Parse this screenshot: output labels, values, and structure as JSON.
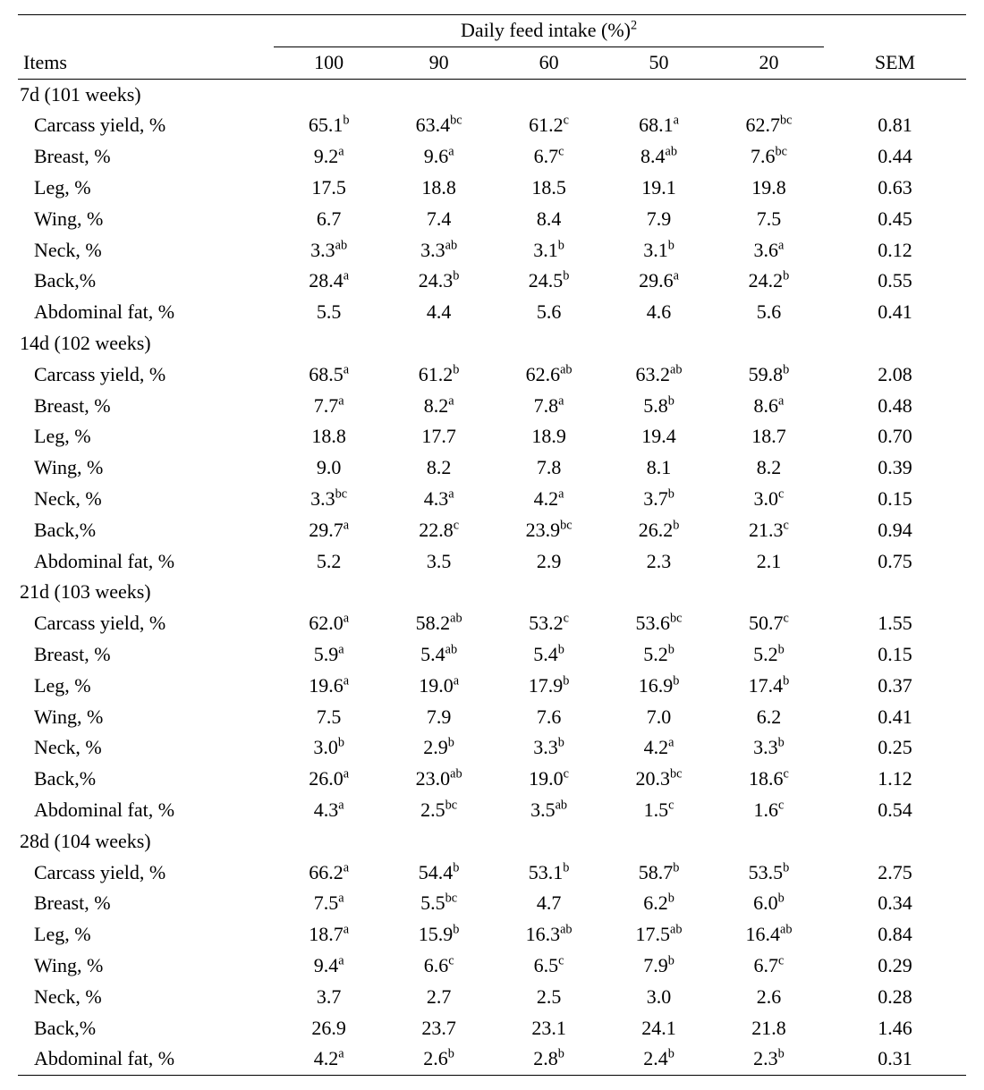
{
  "header": {
    "items": "Items",
    "group": "Daily feed intake (%)",
    "group_sup": "2",
    "cols": [
      "100",
      "90",
      "60",
      "50",
      "20"
    ],
    "sem": "SEM"
  },
  "sections": [
    {
      "title": "7d (101 weeks)",
      "rows": [
        {
          "label": "Carcass yield, %",
          "v": [
            {
              "n": "65.1",
              "s": "b"
            },
            {
              "n": "63.4",
              "s": "bc"
            },
            {
              "n": "61.2",
              "s": "c"
            },
            {
              "n": "68.1",
              "s": "a"
            },
            {
              "n": "62.7",
              "s": "bc"
            }
          ],
          "sem": "0.81"
        },
        {
          "label": "Breast, %",
          "v": [
            {
              "n": "9.2",
              "s": "a"
            },
            {
              "n": "9.6",
              "s": "a"
            },
            {
              "n": "6.7",
              "s": "c"
            },
            {
              "n": "8.4",
              "s": "ab"
            },
            {
              "n": "7.6",
              "s": "bc"
            }
          ],
          "sem": "0.44"
        },
        {
          "label": "Leg, %",
          "v": [
            {
              "n": "17.5"
            },
            {
              "n": "18.8"
            },
            {
              "n": "18.5"
            },
            {
              "n": "19.1"
            },
            {
              "n": "19.8"
            }
          ],
          "sem": "0.63"
        },
        {
          "label": "Wing, %",
          "v": [
            {
              "n": "6.7"
            },
            {
              "n": "7.4"
            },
            {
              "n": "8.4"
            },
            {
              "n": "7.9"
            },
            {
              "n": "7.5"
            }
          ],
          "sem": "0.45"
        },
        {
          "label": "Neck, %",
          "v": [
            {
              "n": "3.3",
              "s": "ab"
            },
            {
              "n": "3.3",
              "s": "ab"
            },
            {
              "n": "3.1",
              "s": "b"
            },
            {
              "n": "3.1",
              "s": "b"
            },
            {
              "n": "3.6",
              "s": "a"
            }
          ],
          "sem": "0.12"
        },
        {
          "label": "Back,%",
          "v": [
            {
              "n": "28.4",
              "s": "a"
            },
            {
              "n": "24.3",
              "s": "b"
            },
            {
              "n": "24.5",
              "s": "b"
            },
            {
              "n": "29.6",
              "s": "a"
            },
            {
              "n": "24.2",
              "s": "b"
            }
          ],
          "sem": "0.55"
        },
        {
          "label": "Abdominal fat, %",
          "v": [
            {
              "n": "5.5"
            },
            {
              "n": "4.4"
            },
            {
              "n": "5.6"
            },
            {
              "n": "4.6"
            },
            {
              "n": "5.6"
            }
          ],
          "sem": "0.41"
        }
      ]
    },
    {
      "title": "14d (102 weeks)",
      "rows": [
        {
          "label": "Carcass yield, %",
          "v": [
            {
              "n": "68.5",
              "s": "a"
            },
            {
              "n": "61.2",
              "s": "b"
            },
            {
              "n": "62.6",
              "s": "ab"
            },
            {
              "n": "63.2",
              "s": "ab"
            },
            {
              "n": "59.8",
              "s": "b"
            }
          ],
          "sem": "2.08"
        },
        {
          "label": "Breast, %",
          "v": [
            {
              "n": "7.7",
              "s": "a"
            },
            {
              "n": "8.2",
              "s": "a"
            },
            {
              "n": "7.8",
              "s": "a"
            },
            {
              "n": "5.8",
              "s": "b"
            },
            {
              "n": "8.6",
              "s": "a"
            }
          ],
          "sem": "0.48"
        },
        {
          "label": "Leg, %",
          "v": [
            {
              "n": "18.8"
            },
            {
              "n": "17.7"
            },
            {
              "n": "18.9"
            },
            {
              "n": "19.4"
            },
            {
              "n": "18.7"
            }
          ],
          "sem": "0.70"
        },
        {
          "label": "Wing, %",
          "v": [
            {
              "n": "9.0"
            },
            {
              "n": "8.2"
            },
            {
              "n": "7.8"
            },
            {
              "n": "8.1"
            },
            {
              "n": "8.2"
            }
          ],
          "sem": "0.39"
        },
        {
          "label": "Neck, %",
          "v": [
            {
              "n": "3.3",
              "s": "bc"
            },
            {
              "n": "4.3",
              "s": "a"
            },
            {
              "n": "4.2",
              "s": "a"
            },
            {
              "n": "3.7",
              "s": "b"
            },
            {
              "n": "3.0",
              "s": "c"
            }
          ],
          "sem": "0.15"
        },
        {
          "label": "Back,%",
          "v": [
            {
              "n": "29.7",
              "s": "a"
            },
            {
              "n": "22.8",
              "s": "c"
            },
            {
              "n": "23.9",
              "s": "bc"
            },
            {
              "n": "26.2",
              "s": "b"
            },
            {
              "n": "21.3",
              "s": "c"
            }
          ],
          "sem": "0.94"
        },
        {
          "label": "Abdominal fat, %",
          "v": [
            {
              "n": "5.2"
            },
            {
              "n": "3.5"
            },
            {
              "n": "2.9"
            },
            {
              "n": "2.3"
            },
            {
              "n": "2.1"
            }
          ],
          "sem": "0.75"
        }
      ]
    },
    {
      "title": "21d (103 weeks)",
      "rows": [
        {
          "label": "Carcass yield, %",
          "v": [
            {
              "n": "62.0",
              "s": "a"
            },
            {
              "n": "58.2",
              "s": "ab"
            },
            {
              "n": "53.2",
              "s": "c"
            },
            {
              "n": "53.6",
              "s": "bc"
            },
            {
              "n": "50.7",
              "s": "c"
            }
          ],
          "sem": "1.55"
        },
        {
          "label": "Breast, %",
          "v": [
            {
              "n": "5.9",
              "s": "a"
            },
            {
              "n": "5.4",
              "s": "ab"
            },
            {
              "n": "5.4",
              "s": "b"
            },
            {
              "n": "5.2",
              "s": "b"
            },
            {
              "n": "5.2",
              "s": "b"
            }
          ],
          "sem": "0.15"
        },
        {
          "label": "Leg, %",
          "v": [
            {
              "n": "19.6",
              "s": "a"
            },
            {
              "n": "19.0",
              "s": "a"
            },
            {
              "n": "17.9",
              "s": "b"
            },
            {
              "n": "16.9",
              "s": "b"
            },
            {
              "n": "17.4",
              "s": "b"
            }
          ],
          "sem": "0.37"
        },
        {
          "label": "Wing, %",
          "v": [
            {
              "n": "7.5"
            },
            {
              "n": "7.9"
            },
            {
              "n": "7.6"
            },
            {
              "n": "7.0"
            },
            {
              "n": "6.2"
            }
          ],
          "sem": "0.41"
        },
        {
          "label": "Neck, %",
          "v": [
            {
              "n": "3.0",
              "s": "b"
            },
            {
              "n": "2.9",
              "s": "b"
            },
            {
              "n": "3.3",
              "s": "b"
            },
            {
              "n": "4.2",
              "s": "a"
            },
            {
              "n": "3.3",
              "s": "b"
            }
          ],
          "sem": "0.25"
        },
        {
          "label": "Back,%",
          "v": [
            {
              "n": "26.0",
              "s": "a"
            },
            {
              "n": "23.0",
              "s": "ab"
            },
            {
              "n": "19.0",
              "s": "c"
            },
            {
              "n": "20.3",
              "s": "bc"
            },
            {
              "n": "18.6",
              "s": "c"
            }
          ],
          "sem": "1.12"
        },
        {
          "label": "Abdominal fat, %",
          "v": [
            {
              "n": "4.3",
              "s": "a"
            },
            {
              "n": "2.5",
              "s": "bc"
            },
            {
              "n": "3.5",
              "s": "ab"
            },
            {
              "n": "1.5",
              "s": "c"
            },
            {
              "n": "1.6",
              "s": "c"
            }
          ],
          "sem": "0.54"
        }
      ]
    },
    {
      "title": "28d (104 weeks)",
      "rows": [
        {
          "label": "Carcass yield, %",
          "v": [
            {
              "n": "66.2",
              "s": "a"
            },
            {
              "n": "54.4",
              "s": "b"
            },
            {
              "n": "53.1",
              "s": "b"
            },
            {
              "n": "58.7",
              "s": "b"
            },
            {
              "n": "53.5",
              "s": "b"
            }
          ],
          "sem": "2.75"
        },
        {
          "label": "Breast, %",
          "v": [
            {
              "n": "7.5",
              "s": "a"
            },
            {
              "n": "5.5",
              "s": "bc"
            },
            {
              "n": "4.7"
            },
            {
              "n": "6.2",
              "s": "b"
            },
            {
              "n": "6.0",
              "s": "b"
            }
          ],
          "sem": "0.34"
        },
        {
          "label": "Leg, %",
          "v": [
            {
              "n": "18.7",
              "s": "a"
            },
            {
              "n": "15.9",
              "s": "b"
            },
            {
              "n": "16.3",
              "s": "ab"
            },
            {
              "n": "17.5",
              "s": "ab"
            },
            {
              "n": "16.4",
              "s": "ab"
            }
          ],
          "sem": "0.84"
        },
        {
          "label": "Wing, %",
          "v": [
            {
              "n": "9.4",
              "s": "a"
            },
            {
              "n": "6.6",
              "s": "c"
            },
            {
              "n": "6.5",
              "s": "c"
            },
            {
              "n": "7.9",
              "s": "b"
            },
            {
              "n": "6.7",
              "s": "c"
            }
          ],
          "sem": "0.29"
        },
        {
          "label": "Neck, %",
          "v": [
            {
              "n": "3.7"
            },
            {
              "n": "2.7"
            },
            {
              "n": "2.5"
            },
            {
              "n": "3.0"
            },
            {
              "n": "2.6"
            }
          ],
          "sem": "0.28"
        },
        {
          "label": "Back,%",
          "v": [
            {
              "n": "26.9"
            },
            {
              "n": "23.7"
            },
            {
              "n": "23.1"
            },
            {
              "n": "24.1"
            },
            {
              "n": "21.8"
            }
          ],
          "sem": "1.46"
        },
        {
          "label": "Abdominal fat, %",
          "v": [
            {
              "n": "4.2",
              "s": "a"
            },
            {
              "n": "2.6",
              "s": "b"
            },
            {
              "n": "2.8",
              "s": "b"
            },
            {
              "n": "2.4",
              "s": "b"
            },
            {
              "n": "2.3",
              "s": "b"
            }
          ],
          "sem": "0.31"
        }
      ]
    }
  ],
  "style": {
    "font_size_pt": 16,
    "sup_size_pt": 10,
    "text_color": "#000000",
    "background_color": "#ffffff",
    "rule_color": "#000000",
    "columns": [
      "Items",
      "100",
      "90",
      "60",
      "50",
      "20",
      "SEM"
    ]
  }
}
